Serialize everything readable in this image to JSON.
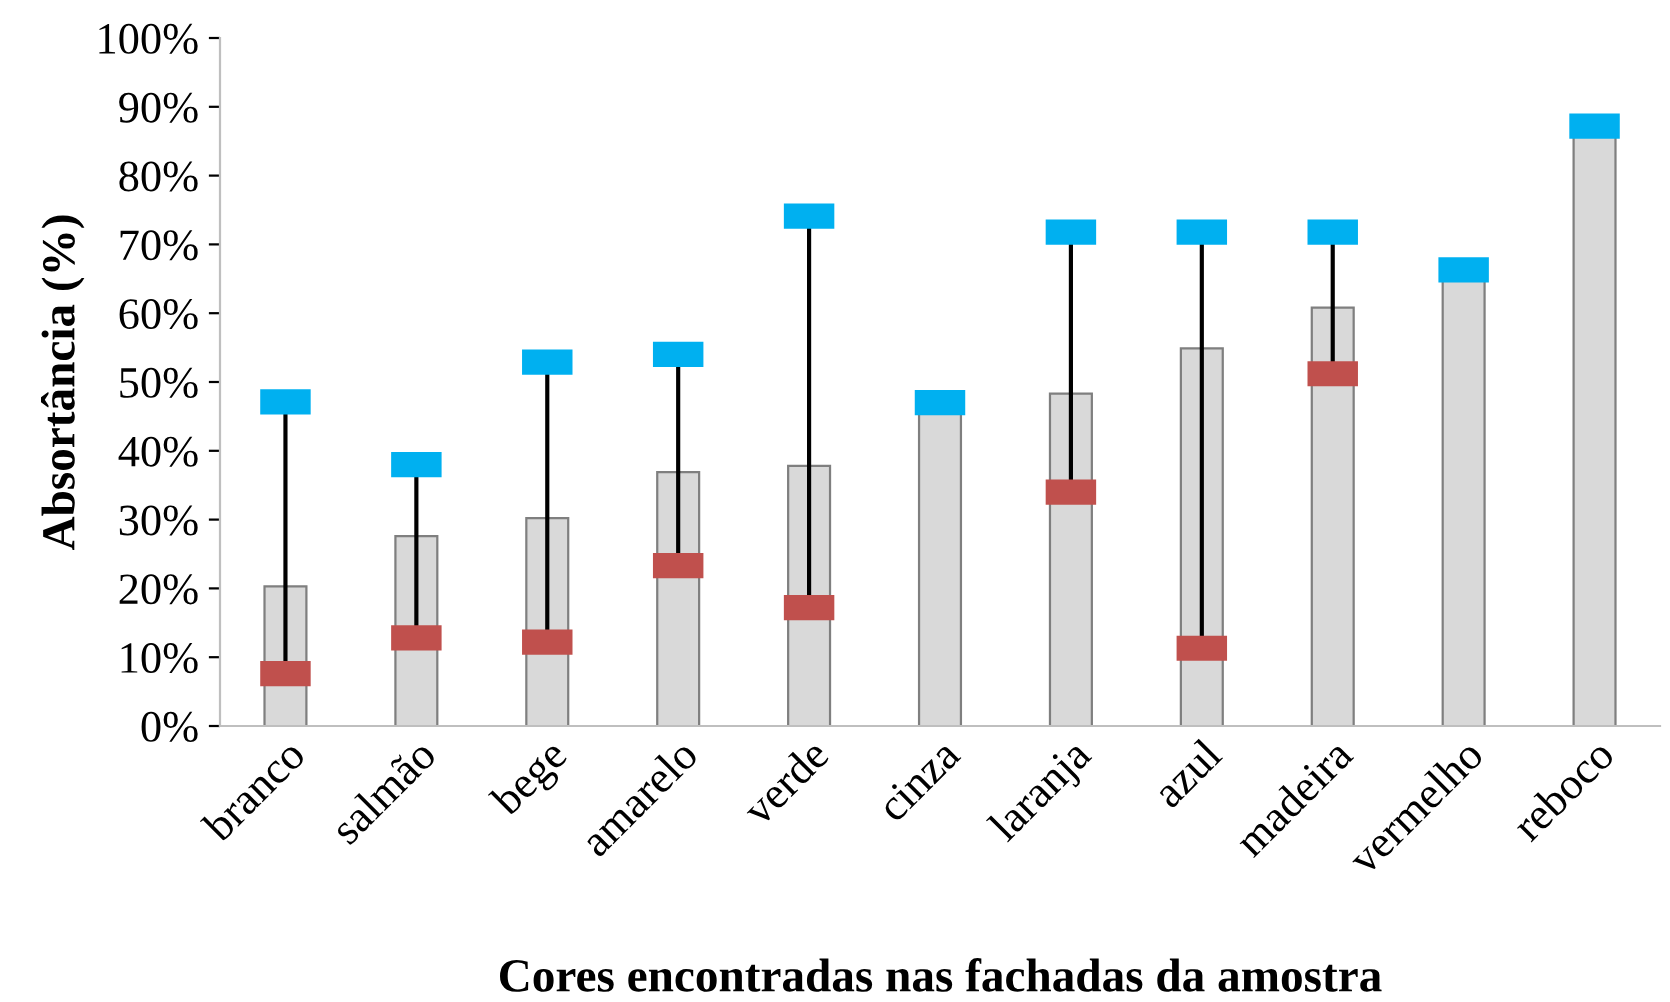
{
  "chart_data": {
    "type": "bar",
    "xlabel": "Cores encontradas nas fachadas da amostra",
    "ylabel": "Absortância (%)",
    "categories": [
      "branco",
      "salmão",
      "bege",
      "amarelo",
      "verde",
      "cinza",
      "laranja",
      "azul",
      "madeira",
      "vermelho",
      "reboco"
    ],
    "ylim": [
      0,
      100
    ],
    "yticks": [
      {
        "value": 0,
        "label": "0%"
      },
      {
        "value": 10,
        "label": "10%"
      },
      {
        "value": 20,
        "label": "20%"
      },
      {
        "value": 30,
        "label": "30%"
      },
      {
        "value": 40,
        "label": "40%"
      },
      {
        "value": 50,
        "label": "50%"
      },
      {
        "value": 60,
        "label": "60%"
      },
      {
        "value": 70,
        "label": "70%"
      },
      {
        "value": 80,
        "label": "80%"
      },
      {
        "value": 90,
        "label": "90%"
      },
      {
        "value": 100,
        "label": "100%"
      }
    ],
    "grid": false,
    "legend": false,
    "series": [
      {
        "color": "#d9d9d9",
        "values": [
          20.3,
          27.6,
          30.2,
          36.9,
          37.8,
          46,
          48.3,
          54.9,
          60.8,
          65,
          86
        ]
      },
      {
        "type": "scatter",
        "color": "#00b0f0",
        "values": [
          47.1,
          38,
          52.9,
          54,
          74.1,
          47,
          71.8,
          71.8,
          71.8,
          66.3,
          87.2
        ]
      },
      {
        "type": "scatter",
        "color": "#c0504d",
        "values": [
          7.6,
          12.8,
          12.2,
          23.3,
          17.2,
          null,
          34,
          11.3,
          51.2,
          null,
          null
        ]
      }
    ]
  }
}
